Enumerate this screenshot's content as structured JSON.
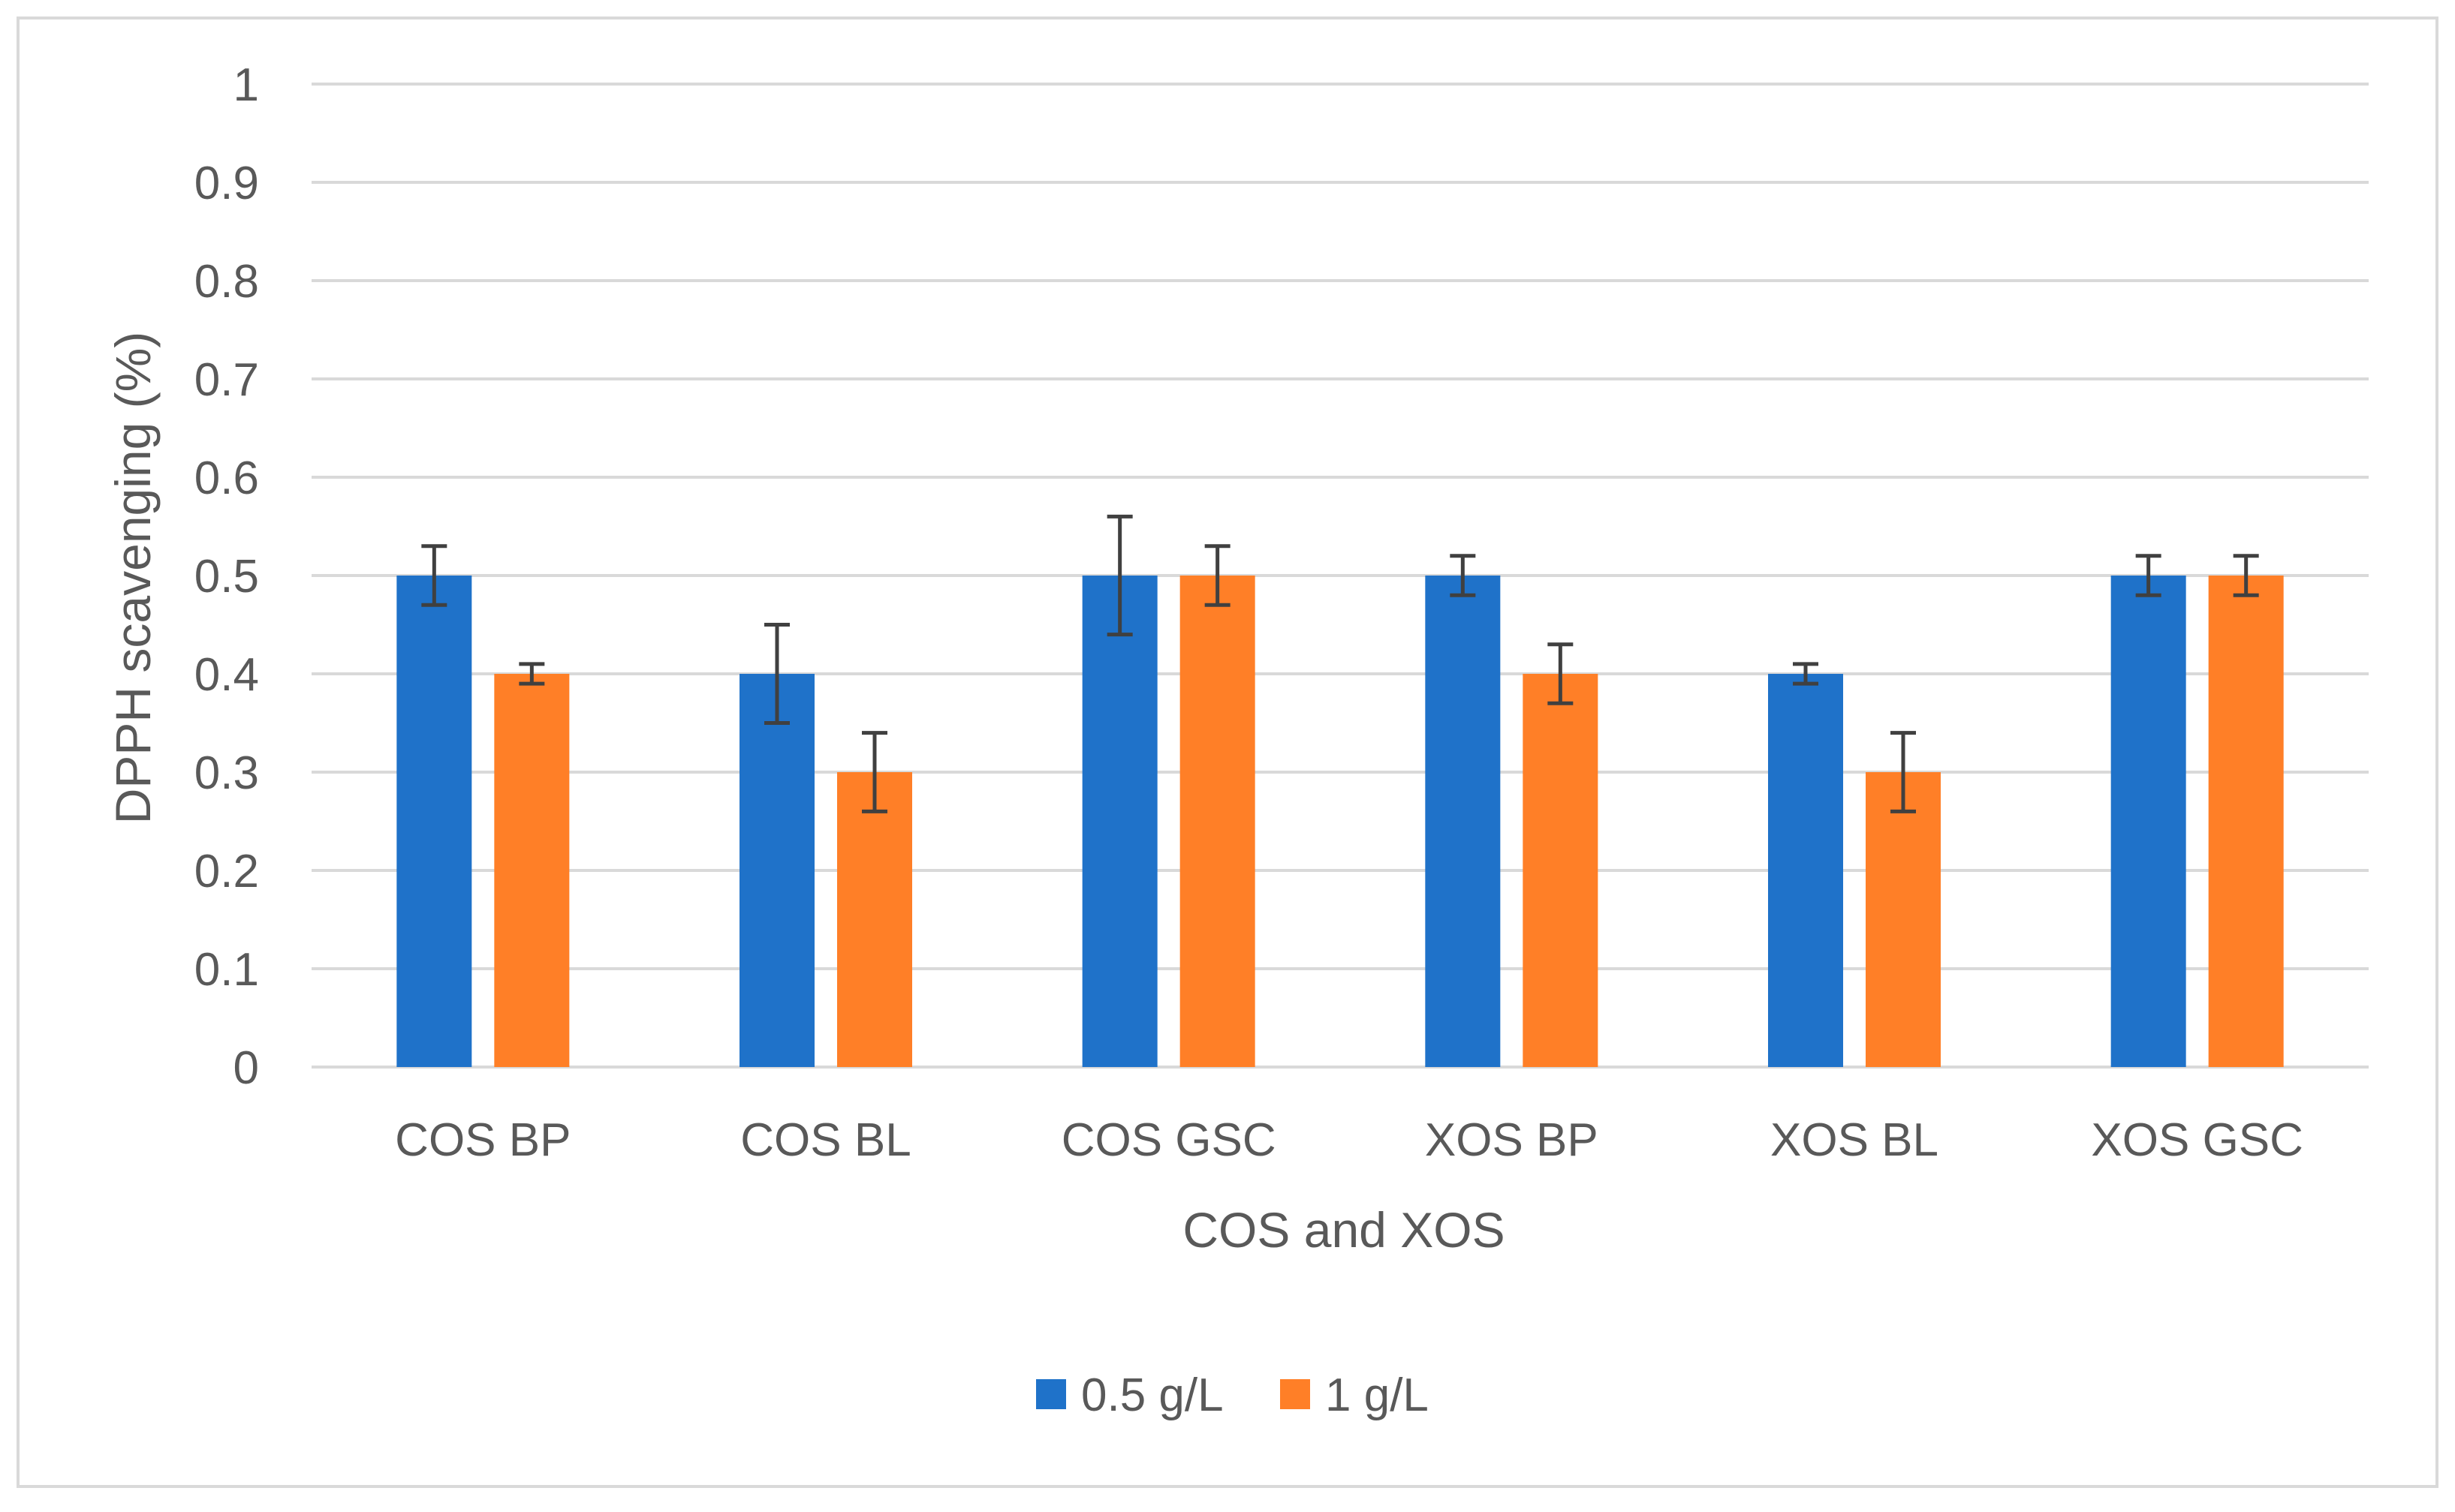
{
  "chart_data": {
    "type": "bar",
    "title": "",
    "xlabel": "COS and XOS",
    "ylabel": "DPPH scavenging (%)",
    "ylim": [
      0,
      1
    ],
    "yticks": [
      "0",
      "0.1",
      "0.2",
      "0.3",
      "0.4",
      "0.5",
      "0.6",
      "0.7",
      "0.8",
      "0.9",
      "1"
    ],
    "ytick_values": [
      0,
      0.1,
      0.2,
      0.3,
      0.4,
      0.5,
      0.6,
      0.7,
      0.8,
      0.9,
      1
    ],
    "grid": true,
    "legend_position": "bottom-center",
    "categories": [
      "COS BP",
      "COS BL",
      "COS GSC",
      "XOS BP",
      "XOS BL",
      "XOS GSC"
    ],
    "series": [
      {
        "name": "0.5 g/L",
        "color": "#1f72c9",
        "values": [
          0.5,
          0.4,
          0.5,
          0.5,
          0.4,
          0.5
        ],
        "errors": [
          0.03,
          0.05,
          0.06,
          0.02,
          0.01,
          0.02
        ]
      },
      {
        "name": "1 g/L",
        "color": "#ff7f27",
        "values": [
          0.4,
          0.3,
          0.5,
          0.4,
          0.3,
          0.5
        ],
        "errors": [
          0.01,
          0.04,
          0.03,
          0.03,
          0.04,
          0.02
        ]
      }
    ]
  }
}
